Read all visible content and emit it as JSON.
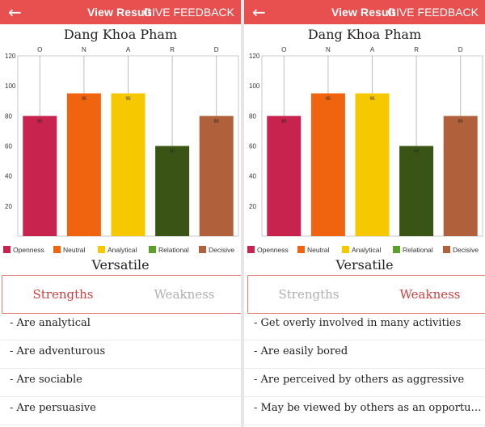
{
  "panels": [
    {
      "topbar": {
        "back_icon": "←",
        "view_result": "View Result",
        "give_feedback": "GIVE FEEDBACK"
      },
      "person_name": "Dang Khoa Pham",
      "type_label": "Versatile",
      "tabs": {
        "strengths": "Strengths",
        "weakness": "Weakness",
        "active": "strengths"
      },
      "items": [
        "- Are analytical",
        "- Are adventurous",
        "- Are sociable",
        "- Are persuasive"
      ]
    },
    {
      "topbar": {
        "back_icon": "←",
        "view_result": "View Result",
        "give_feedback": "GIVE FEEDBACK"
      },
      "person_name": "Dang Khoa Pham",
      "type_label": "Versatile",
      "tabs": {
        "strengths": "Strengths",
        "weakness": "Weakness",
        "active": "weakness"
      },
      "items": [
        "- Get overly involved in many activities",
        "- Are easily bored",
        "- Are perceived by others as aggressive",
        "- May be viewed by others as an opportunis..."
      ]
    }
  ],
  "chart_data": [
    {
      "type": "bar",
      "categories": [
        "O",
        "N",
        "A",
        "R",
        "D"
      ],
      "values": [
        80,
        95,
        95,
        60,
        80
      ],
      "legend": [
        "Openness",
        "Neutral",
        "Analytical",
        "Relational",
        "Decisive"
      ],
      "colors": [
        "#c8224e",
        "#f06410",
        "#f5c800",
        "#3a5416",
        "#b0603a"
      ],
      "legend_colors": [
        "#c8224e",
        "#f06410",
        "#f5c800",
        "#5aa02a",
        "#b0603a"
      ],
      "yticks": [
        20,
        40,
        60,
        80,
        100,
        120
      ],
      "ylim": [
        0,
        120
      ],
      "grid": "vertical lines at categories",
      "legend_position": "bottom"
    },
    {
      "type": "bar",
      "categories": [
        "O",
        "N",
        "A",
        "R",
        "D"
      ],
      "values": [
        80,
        95,
        95,
        60,
        80
      ],
      "legend": [
        "Openness",
        "Neutral",
        "Analytical",
        "Relational",
        "Decisive"
      ],
      "colors": [
        "#c8224e",
        "#f06410",
        "#f5c800",
        "#3a5416",
        "#b0603a"
      ],
      "legend_colors": [
        "#c8224e",
        "#f06410",
        "#f5c800",
        "#5aa02a",
        "#b0603a"
      ],
      "yticks": [
        20,
        40,
        60,
        80,
        100,
        120
      ],
      "ylim": [
        0,
        120
      ],
      "grid": "vertical lines at categories",
      "legend_position": "bottom"
    }
  ]
}
